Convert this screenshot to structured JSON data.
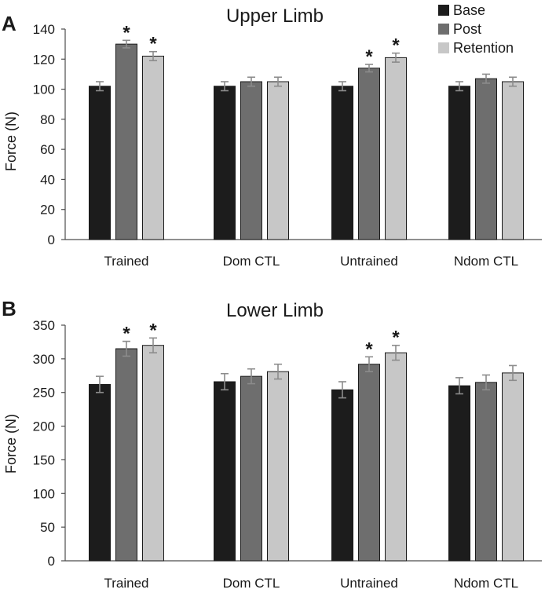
{
  "colors": {
    "Base": "#1c1c1c",
    "Post": "#6e6e6e",
    "Retention": "#c7c7c7"
  },
  "legend": [
    "Base",
    "Post",
    "Retention"
  ],
  "chart_data": [
    {
      "type": "bar",
      "panel": "A",
      "title": "Upper Limb",
      "xlabel": "",
      "ylabel": "Force (N)",
      "ylim": [
        0,
        140
      ],
      "yticks": [
        0,
        20,
        40,
        60,
        80,
        100,
        120,
        140
      ],
      "legend_position": "top-right",
      "categories": [
        "Trained",
        "Dom CTL",
        "Untrained",
        "Ndom CTL"
      ],
      "series": [
        {
          "name": "Base",
          "values": [
            102,
            102,
            102,
            102
          ],
          "errors": [
            3,
            3,
            3,
            3
          ],
          "significant": [
            false,
            false,
            false,
            false
          ]
        },
        {
          "name": "Post",
          "values": [
            130,
            105,
            114,
            107
          ],
          "errors": [
            2.5,
            3,
            2.5,
            3
          ],
          "significant": [
            true,
            false,
            true,
            false
          ]
        },
        {
          "name": "Retention",
          "values": [
            122,
            105,
            121,
            105
          ],
          "errors": [
            3,
            3,
            3,
            3
          ],
          "significant": [
            true,
            false,
            true,
            false
          ]
        }
      ],
      "significance_marker": "*"
    },
    {
      "type": "bar",
      "panel": "B",
      "title": "Lower Limb",
      "xlabel": "",
      "ylabel": "Force (N)",
      "ylim": [
        0,
        350
      ],
      "yticks": [
        0,
        50,
        100,
        150,
        200,
        250,
        300,
        350
      ],
      "categories": [
        "Trained",
        "Dom CTL",
        "Untrained",
        "Ndom CTL"
      ],
      "series": [
        {
          "name": "Base",
          "values": [
            262,
            266,
            254,
            260
          ],
          "errors": [
            12,
            12,
            12,
            12
          ],
          "significant": [
            false,
            false,
            false,
            false
          ]
        },
        {
          "name": "Post",
          "values": [
            315,
            274,
            292,
            265
          ],
          "errors": [
            11,
            11,
            11,
            11
          ],
          "significant": [
            true,
            false,
            true,
            false
          ]
        },
        {
          "name": "Retention",
          "values": [
            320,
            281,
            309,
            279
          ],
          "errors": [
            11,
            11,
            11,
            11
          ],
          "significant": [
            true,
            false,
            true,
            false
          ]
        }
      ],
      "significance_marker": "*"
    }
  ]
}
